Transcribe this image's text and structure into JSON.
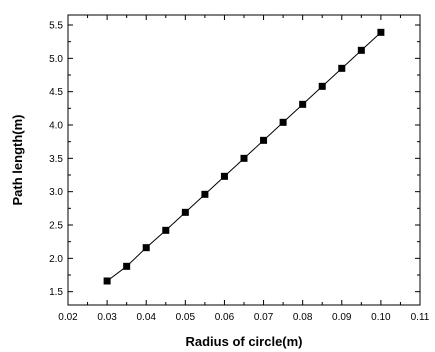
{
  "chart_data": {
    "type": "line",
    "title": "",
    "xlabel": "Radius of circle(m)",
    "ylabel": "Path length(m)",
    "xlim": [
      0.02,
      0.11
    ],
    "ylim": [
      1.3,
      5.65
    ],
    "x_ticks": [
      "0.02",
      "0.03",
      "0.04",
      "0.05",
      "0.06",
      "0.07",
      "0.08",
      "0.09",
      "0.10",
      "0.11"
    ],
    "y_ticks": [
      "1.5",
      "2.0",
      "2.5",
      "3.0",
      "3.5",
      "4.0",
      "4.5",
      "5.0",
      "5.5"
    ],
    "grid": false,
    "legend": "none",
    "marker": "square",
    "series": [
      {
        "x": [
          0.03,
          0.035,
          0.04,
          0.045,
          0.05,
          0.055,
          0.06,
          0.065,
          0.07,
          0.075,
          0.08,
          0.085,
          0.09,
          0.095,
          0.1
        ],
        "values": [
          1.66,
          1.88,
          2.16,
          2.42,
          2.69,
          2.96,
          3.23,
          3.5,
          3.77,
          4.04,
          4.31,
          4.58,
          4.85,
          5.12,
          5.39
        ],
        "color": "#000000"
      }
    ]
  }
}
